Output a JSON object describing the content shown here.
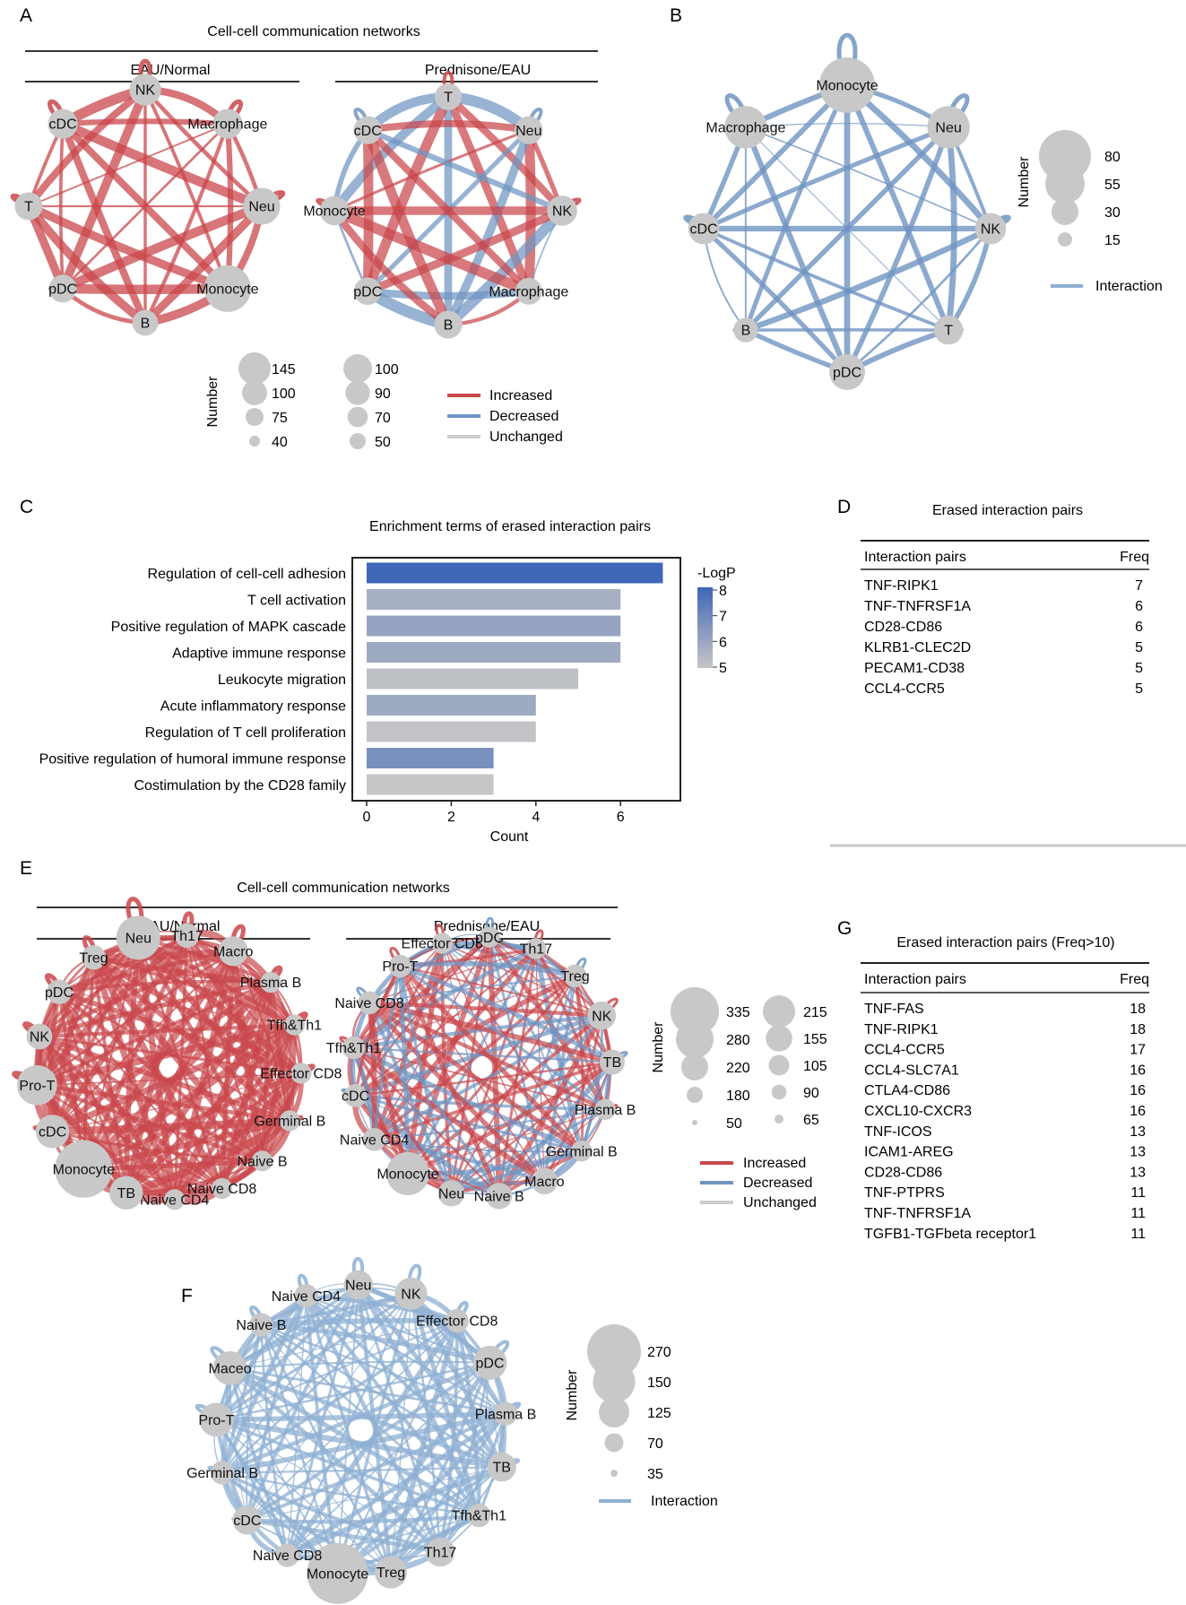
{
  "panel_letters": {
    "A": "A",
    "B": "B",
    "C": "C",
    "D": "D",
    "E": "E",
    "F": "F",
    "G": "G"
  },
  "legend_labels": {
    "number": "Number",
    "increased": "Increased",
    "decreased": "Decreased",
    "unchanged": "Unchanged",
    "interaction": "Interaction"
  },
  "colors": {
    "increased": "#c9474b",
    "decreased": "#6f94c2",
    "unchanged": "#cccccc",
    "node": "#c8c8c8",
    "interaction": "#8fb0d3"
  },
  "panel_A": {
    "title": "Cell-cell communication networks",
    "left": {
      "label": "EAU/Normal",
      "nodes": [
        {
          "name": "NK",
          "size": 70
        },
        {
          "name": "Macrophage",
          "size": 60
        },
        {
          "name": "Neu",
          "size": 95
        },
        {
          "name": "Monocyte",
          "size": 145
        },
        {
          "name": "B",
          "size": 40
        },
        {
          "name": "pDC",
          "size": 50
        },
        {
          "name": "T",
          "size": 50
        },
        {
          "name": "cDC",
          "size": 60
        }
      ]
    },
    "right": {
      "label": "Prednisone/EAU",
      "nodes": [
        {
          "name": "T",
          "size": 50
        },
        {
          "name": "Neu",
          "size": 60
        },
        {
          "name": "NK",
          "size": 80
        },
        {
          "name": "Macrophage",
          "size": 50
        },
        {
          "name": "B",
          "size": 60
        },
        {
          "name": "pDC",
          "size": 55
        },
        {
          "name": "Monocyte",
          "size": 70
        },
        {
          "name": "cDC",
          "size": 60
        }
      ]
    },
    "size_legend_left": [
      "145",
      "100",
      "75",
      "40"
    ],
    "size_legend_right": [
      "100",
      "90",
      "70",
      "50"
    ]
  },
  "panel_B": {
    "nodes": [
      {
        "name": "Monocyte",
        "size": 85
      },
      {
        "name": "Neu",
        "size": 55
      },
      {
        "name": "NK",
        "size": 30
      },
      {
        "name": "T",
        "size": 25
      },
      {
        "name": "pDC",
        "size": 40
      },
      {
        "name": "B",
        "size": 15
      },
      {
        "name": "cDC",
        "size": 30
      },
      {
        "name": "Macrophage",
        "size": 55
      }
    ],
    "size_legend": [
      "80",
      "55",
      "30",
      "15"
    ]
  },
  "chart_data": {
    "type": "bar",
    "title": "Enrichment terms of erased interaction pairs",
    "categories": [
      "Regulation of cell-cell adhesion",
      "T cell activation",
      "Positive regulation of MAPK cascade",
      "Adaptive immune response",
      "Leukocyte migration",
      "Acute inflammatory response",
      "Regulation of T cell proliferation",
      "Positive regulation of humoral immune response",
      "Costimulation by the CD28 family"
    ],
    "values": [
      7,
      6,
      6,
      6,
      5,
      4,
      4,
      3,
      3
    ],
    "color_values": [
      8,
      5.7,
      6.1,
      5.9,
      5.2,
      5.9,
      5.1,
      6.7,
      5.0
    ],
    "xlabel": "Count",
    "ylabel": "",
    "xlim": [
      0,
      7.5
    ],
    "xticks": [
      "0",
      "2",
      "4",
      "6"
    ],
    "colorbar": {
      "label": "-LogP",
      "ticks": [
        "8",
        "7",
        "6",
        "5"
      ],
      "range": [
        5,
        8
      ]
    }
  },
  "panel_D": {
    "title": "Erased interaction pairs",
    "headers": [
      "Interaction pairs",
      "Freq"
    ],
    "rows": [
      [
        "TNF-RIPK1",
        "7"
      ],
      [
        "TNF-TNFRSF1A",
        "6"
      ],
      [
        "CD28-CD86",
        "6"
      ],
      [
        "KLRB1-CLEC2D",
        "5"
      ],
      [
        "PECAM1-CD38",
        "5"
      ],
      [
        "CCL4-CCR5",
        "5"
      ]
    ]
  },
  "panel_E": {
    "title": "Cell-cell communication networks",
    "left": {
      "label": "EAU/Normal",
      "nodes": [
        {
          "name": "Th17",
          "size": 80
        },
        {
          "name": "Macro",
          "size": 120
        },
        {
          "name": "Plasma B",
          "size": 50
        },
        {
          "name": "Tfh&Th1",
          "size": 50
        },
        {
          "name": "Effector CD8",
          "size": 50
        },
        {
          "name": "Germinal B",
          "size": 50
        },
        {
          "name": "Naive B",
          "size": 50
        },
        {
          "name": "Naive CD8",
          "size": 50
        },
        {
          "name": "Naive CD4",
          "size": 50
        },
        {
          "name": "TB",
          "size": 150
        },
        {
          "name": "Monocyte",
          "size": 335
        },
        {
          "name": "cDC",
          "size": 150
        },
        {
          "name": "Pro-T",
          "size": 200
        },
        {
          "name": "NK",
          "size": 90
        },
        {
          "name": "pDC",
          "size": 80
        },
        {
          "name": "Treg",
          "size": 80
        },
        {
          "name": "Neu",
          "size": 230
        }
      ]
    },
    "right": {
      "label": "Prednisone/EAU",
      "nodes": [
        {
          "name": "Effector CD8",
          "size": 50
        },
        {
          "name": "pDC",
          "size": 50
        },
        {
          "name": "Th17",
          "size": 50
        },
        {
          "name": "Treg",
          "size": 65
        },
        {
          "name": "NK",
          "size": 105
        },
        {
          "name": "TB",
          "size": 80
        },
        {
          "name": "Plasma B",
          "size": 50
        },
        {
          "name": "Germinal B",
          "size": 50
        },
        {
          "name": "Macro",
          "size": 90
        },
        {
          "name": "Naive B",
          "size": 90
        },
        {
          "name": "Neu",
          "size": 90
        },
        {
          "name": "Monocyte",
          "size": 215
        },
        {
          "name": "Naive CD4",
          "size": 65
        },
        {
          "name": "cDC",
          "size": 65
        },
        {
          "name": "Tfh&Th1",
          "size": 65
        },
        {
          "name": "Naive CD8",
          "size": 65
        },
        {
          "name": "Pro-T",
          "size": 65
        }
      ]
    },
    "size_legend_left": [
      "335",
      "280",
      "220",
      "180",
      "50"
    ],
    "size_legend_right": [
      "215",
      "155",
      "105",
      "90",
      "65"
    ]
  },
  "panel_F": {
    "nodes": [
      {
        "name": "NK",
        "size": 90
      },
      {
        "name": "Effector CD8",
        "size": 35
      },
      {
        "name": "pDC",
        "size": 100
      },
      {
        "name": "Plasma B",
        "size": 35
      },
      {
        "name": "TB",
        "size": 70
      },
      {
        "name": "Tfh&Th1",
        "size": 35
      },
      {
        "name": "Th17",
        "size": 70
      },
      {
        "name": "Treg",
        "size": 90
      },
      {
        "name": "Monocyte",
        "size": 270
      },
      {
        "name": "Naive CD8",
        "size": 35
      },
      {
        "name": "cDC",
        "size": 70
      },
      {
        "name": "Germinal B",
        "size": 35
      },
      {
        "name": "Pro-T",
        "size": 100
      },
      {
        "name": "Maceo",
        "size": 100
      },
      {
        "name": "Naive B",
        "size": 35
      },
      {
        "name": "Naive CD4",
        "size": 35
      },
      {
        "name": "Neu",
        "size": 70
      }
    ],
    "size_legend": [
      "270",
      "150",
      "125",
      "70",
      "35"
    ]
  },
  "panel_G": {
    "title": "Erased interaction pairs (Freq>10)",
    "headers": [
      "Interaction pairs",
      "Freq"
    ],
    "rows": [
      [
        "TNF-FAS",
        "18"
      ],
      [
        "TNF-RIPK1",
        "18"
      ],
      [
        "CCL4-CCR5",
        "17"
      ],
      [
        "CCL4-SLC7A1",
        "16"
      ],
      [
        "CTLA4-CD86",
        "16"
      ],
      [
        "CXCL10-CXCR3",
        "16"
      ],
      [
        "TNF-ICOS",
        "13"
      ],
      [
        "ICAM1-AREG",
        "13"
      ],
      [
        "CD28-CD86",
        "13"
      ],
      [
        "TNF-PTPRS",
        "11"
      ],
      [
        "TNF-TNFRSF1A",
        "11"
      ],
      [
        "TGFB1-TGFbeta receptor1",
        "11"
      ]
    ]
  }
}
